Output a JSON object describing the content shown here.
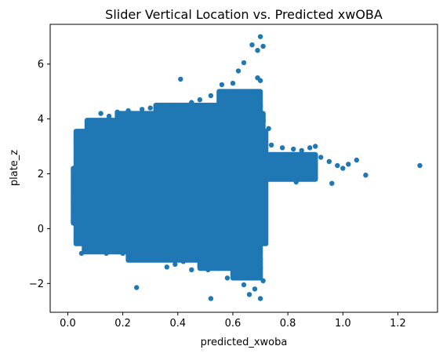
{
  "chart_data": {
    "type": "scatter",
    "title": "Slider Vertical Location vs. Predicted xwOBA",
    "xlabel": "predicted_xwoba",
    "ylabel": "plate_z",
    "xlim": [
      -0.064,
      1.344
    ],
    "ylim": [
      -3.05,
      7.45
    ],
    "x_ticks": [
      0.0,
      0.2,
      0.4,
      0.6,
      0.8,
      1.0,
      1.2
    ],
    "x_tick_labels": [
      "0.0",
      "0.2",
      "0.4",
      "0.6",
      "0.8",
      "1.0",
      "1.2"
    ],
    "y_ticks": [
      -2,
      0,
      2,
      4,
      6
    ],
    "y_tick_labels": [
      "−2",
      "0",
      "2",
      "4",
      "6"
    ],
    "grid": false,
    "legend": false,
    "marker_color": "#1f77b4",
    "points": [
      [
        0.1,
        3.9
      ],
      [
        0.12,
        4.2
      ],
      [
        0.15,
        4.1
      ],
      [
        0.18,
        4.25
      ],
      [
        0.22,
        4.3
      ],
      [
        0.27,
        4.35
      ],
      [
        0.3,
        4.4
      ],
      [
        0.35,
        4.4
      ],
      [
        0.38,
        4.5
      ],
      [
        0.41,
        5.45
      ],
      [
        0.45,
        4.6
      ],
      [
        0.48,
        4.7
      ],
      [
        0.52,
        4.85
      ],
      [
        0.56,
        5.25
      ],
      [
        0.6,
        5.3
      ],
      [
        0.62,
        5.75
      ],
      [
        0.64,
        6.05
      ],
      [
        0.67,
        6.7
      ],
      [
        0.69,
        6.5
      ],
      [
        0.7,
        7.0
      ],
      [
        0.71,
        6.65
      ],
      [
        0.69,
        5.5
      ],
      [
        0.7,
        5.4
      ],
      [
        0.73,
        3.65
      ],
      [
        0.74,
        3.05
      ],
      [
        0.78,
        2.95
      ],
      [
        0.82,
        2.9
      ],
      [
        0.85,
        2.85
      ],
      [
        0.88,
        2.95
      ],
      [
        0.9,
        3.0
      ],
      [
        0.92,
        2.6
      ],
      [
        0.95,
        2.45
      ],
      [
        0.98,
        2.3
      ],
      [
        1.0,
        2.2
      ],
      [
        1.02,
        2.35
      ],
      [
        1.05,
        2.5
      ],
      [
        0.96,
        1.65
      ],
      [
        0.9,
        1.85
      ],
      [
        0.86,
        1.95
      ],
      [
        0.83,
        1.7
      ],
      [
        0.8,
        2.1
      ],
      [
        0.77,
        2.0
      ],
      [
        0.75,
        1.9
      ],
      [
        1.083,
        1.95
      ],
      [
        1.28,
        2.3
      ],
      [
        0.02,
        0.3
      ],
      [
        0.03,
        -0.4
      ],
      [
        0.05,
        -0.9
      ],
      [
        0.08,
        -0.7
      ],
      [
        0.11,
        -0.8
      ],
      [
        0.14,
        -0.9
      ],
      [
        0.17,
        -0.75
      ],
      [
        0.2,
        -0.9
      ],
      [
        0.24,
        -1.0
      ],
      [
        0.27,
        -0.9
      ],
      [
        0.3,
        -1.05
      ],
      [
        0.33,
        -1.0
      ],
      [
        0.36,
        -1.4
      ],
      [
        0.39,
        -1.3
      ],
      [
        0.42,
        -1.2
      ],
      [
        0.45,
        -1.5
      ],
      [
        0.48,
        -1.35
      ],
      [
        0.51,
        -1.5
      ],
      [
        0.55,
        -1.45
      ],
      [
        0.58,
        -1.8
      ],
      [
        0.62,
        -1.7
      ],
      [
        0.64,
        -2.05
      ],
      [
        0.66,
        -2.4
      ],
      [
        0.68,
        -2.2
      ],
      [
        0.7,
        -2.55
      ],
      [
        0.71,
        -1.9
      ],
      [
        0.25,
        -2.15
      ],
      [
        0.52,
        -2.55
      ],
      [
        0.03,
        3.2
      ],
      [
        0.05,
        2.0
      ],
      [
        0.04,
        1.5
      ],
      [
        0.02,
        1.0
      ]
    ],
    "dense_regions": [
      {
        "x": [
          0.03,
          0.72
        ],
        "y": [
          -0.55,
          3.55
        ]
      },
      {
        "x": [
          0.07,
          0.71
        ],
        "y": [
          3.45,
          3.95
        ]
      },
      {
        "x": [
          0.18,
          0.71
        ],
        "y": [
          3.9,
          4.2
        ]
      },
      {
        "x": [
          0.32,
          0.7
        ],
        "y": [
          4.15,
          4.5
        ]
      },
      {
        "x": [
          0.55,
          0.7
        ],
        "y": [
          4.4,
          5.0
        ]
      },
      {
        "x": [
          0.06,
          0.7
        ],
        "y": [
          -0.85,
          -0.45
        ]
      },
      {
        "x": [
          0.22,
          0.7
        ],
        "y": [
          -1.15,
          -0.8
        ]
      },
      {
        "x": [
          0.48,
          0.7
        ],
        "y": [
          -1.45,
          -1.1
        ]
      },
      {
        "x": [
          0.6,
          0.7
        ],
        "y": [
          -1.8,
          -1.4
        ]
      },
      {
        "x": [
          0.72,
          0.9
        ],
        "y": [
          1.8,
          2.7
        ]
      },
      {
        "x": [
          0.02,
          0.06
        ],
        "y": [
          0.2,
          2.2
        ]
      }
    ]
  }
}
